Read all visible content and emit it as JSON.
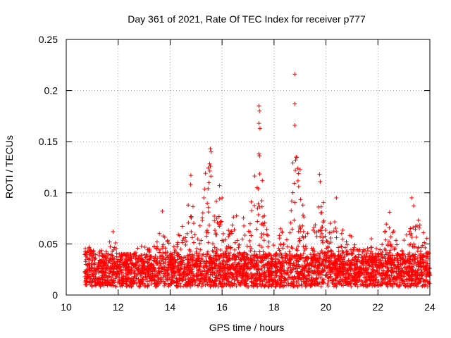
{
  "chart_data": {
    "type": "scatter",
    "title": "Day 361 of 2021, Rate Of TEC Index for receiver p777",
    "xlabel": "GPS time / hours",
    "ylabel": "ROTI / TECUs",
    "xlim": [
      10,
      24
    ],
    "ylim": [
      0,
      0.25
    ],
    "xticks": [
      10,
      12,
      14,
      16,
      18,
      20,
      22,
      24
    ],
    "yticks": [
      0,
      0.05,
      0.1,
      0.15,
      0.2,
      0.25
    ],
    "xtick_labels": [
      "10",
      "12",
      "14",
      "16",
      "18",
      "20",
      "22",
      "24"
    ],
    "ytick_labels": [
      "0",
      "0.05",
      "0.1",
      "0.15",
      "0.2",
      "0.25"
    ],
    "grid": true,
    "marker": "plus",
    "color": "#ff0000",
    "time_range": [
      10.7,
      24.0
    ],
    "baseline_band": [
      0.008,
      0.04
    ],
    "activity_envelope": [
      [
        10.7,
        0.045
      ],
      [
        11.0,
        0.048
      ],
      [
        11.5,
        0.042
      ],
      [
        11.8,
        0.062
      ],
      [
        12.0,
        0.04
      ],
      [
        12.5,
        0.04
      ],
      [
        12.9,
        0.05
      ],
      [
        13.3,
        0.048
      ],
      [
        13.6,
        0.063
      ],
      [
        13.7,
        0.082
      ],
      [
        14.0,
        0.05
      ],
      [
        14.3,
        0.065
      ],
      [
        14.6,
        0.075
      ],
      [
        14.8,
        0.117
      ],
      [
        15.0,
        0.08
      ],
      [
        15.2,
        0.098
      ],
      [
        15.5,
        0.143
      ],
      [
        15.7,
        0.09
      ],
      [
        15.9,
        0.107
      ],
      [
        16.1,
        0.08
      ],
      [
        16.4,
        0.09
      ],
      [
        16.7,
        0.07
      ],
      [
        17.0,
        0.085
      ],
      [
        17.2,
        0.1
      ],
      [
        17.4,
        0.185
      ],
      [
        17.55,
        0.112
      ],
      [
        17.8,
        0.07
      ],
      [
        18.1,
        0.06
      ],
      [
        18.5,
        0.075
      ],
      [
        18.8,
        0.216
      ],
      [
        19.1,
        0.09
      ],
      [
        19.5,
        0.07
      ],
      [
        19.8,
        0.118
      ],
      [
        20.1,
        0.08
      ],
      [
        20.4,
        0.095
      ],
      [
        20.8,
        0.07
      ],
      [
        21.2,
        0.045
      ],
      [
        21.5,
        0.045
      ],
      [
        21.8,
        0.05
      ],
      [
        22.1,
        0.045
      ],
      [
        22.4,
        0.081
      ],
      [
        22.7,
        0.055
      ],
      [
        23.0,
        0.06
      ],
      [
        23.3,
        0.095
      ],
      [
        23.6,
        0.07
      ],
      [
        24.0,
        0.05
      ]
    ],
    "notable_points": [
      {
        "x": 18.8,
        "y": 0.216
      },
      {
        "x": 18.8,
        "y": 0.187
      },
      {
        "x": 18.8,
        "y": 0.166
      },
      {
        "x": 17.42,
        "y": 0.185
      },
      {
        "x": 17.44,
        "y": 0.18
      },
      {
        "x": 17.42,
        "y": 0.168
      },
      {
        "x": 17.46,
        "y": 0.163
      },
      {
        "x": 17.42,
        "y": 0.138
      },
      {
        "x": 17.44,
        "y": 0.136
      },
      {
        "x": 15.55,
        "y": 0.143
      },
      {
        "x": 15.58,
        "y": 0.14
      },
      {
        "x": 15.55,
        "y": 0.126
      },
      {
        "x": 18.85,
        "y": 0.135
      },
      {
        "x": 18.83,
        "y": 0.132
      },
      {
        "x": 18.82,
        "y": 0.122
      },
      {
        "x": 14.8,
        "y": 0.117
      },
      {
        "x": 19.75,
        "y": 0.118
      },
      {
        "x": 19.78,
        "y": 0.111
      },
      {
        "x": 17.55,
        "y": 0.112
      },
      {
        "x": 15.9,
        "y": 0.107
      },
      {
        "x": 17.4,
        "y": 0.104
      },
      {
        "x": 20.4,
        "y": 0.095
      },
      {
        "x": 23.3,
        "y": 0.095
      },
      {
        "x": 13.7,
        "y": 0.082
      },
      {
        "x": 22.45,
        "y": 0.081
      },
      {
        "x": 11.8,
        "y": 0.062
      },
      {
        "x": 21.75,
        "y": 0.055
      },
      {
        "x": 22.5,
        "y": 0.057
      },
      {
        "x": 16.0,
        "y": 0.095
      },
      {
        "x": 15.3,
        "y": 0.095
      }
    ]
  }
}
